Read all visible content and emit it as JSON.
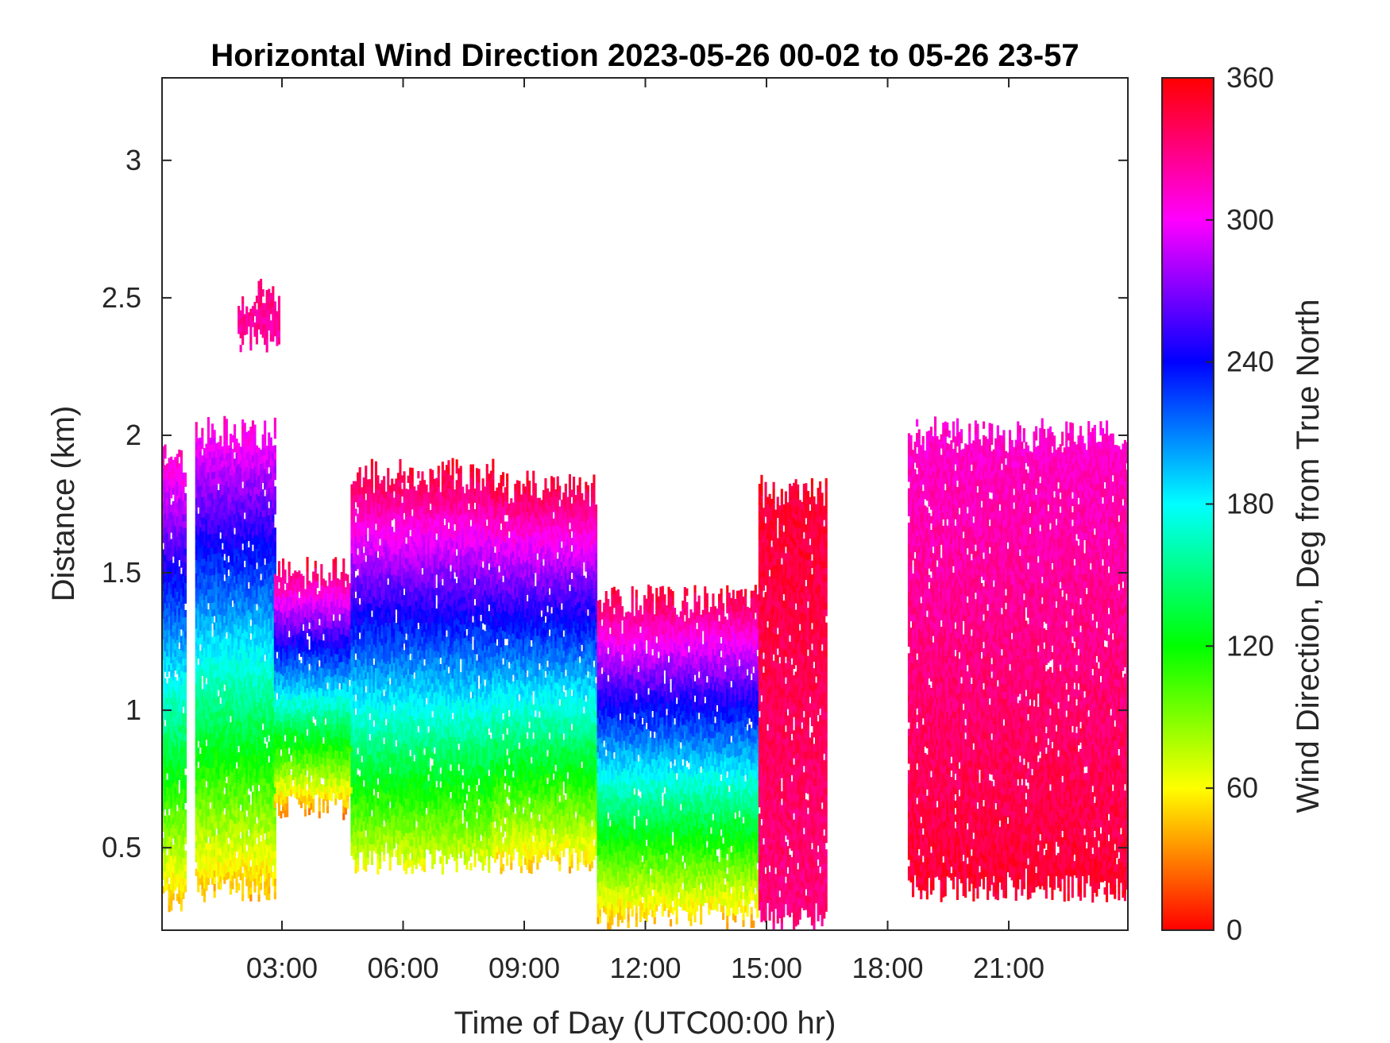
{
  "chart_data": {
    "type": "heatmap",
    "title": "Horizontal Wind Direction 2023-05-26 00-02 to 05-26 23-57",
    "xlabel": "Time of Day (UTC00:00 hr)",
    "ylabel": "Distance (km)",
    "x_unit": "hours",
    "xlim": [
      0.03,
      23.95
    ],
    "ylim": [
      0.2,
      3.3
    ],
    "x_ticks": [
      3,
      6,
      9,
      12,
      15,
      18,
      21
    ],
    "x_tick_labels": [
      "03:00",
      "06:00",
      "09:00",
      "12:00",
      "15:00",
      "18:00",
      "21:00"
    ],
    "y_ticks": [
      0.5,
      1,
      1.5,
      2,
      2.5,
      3
    ],
    "y_tick_labels": [
      "0.5",
      "1",
      "1.5",
      "2",
      "2.5",
      "3"
    ],
    "colorbar": {
      "label": "Wind Direction, Deg from True North",
      "range": [
        0,
        360
      ],
      "ticks": [
        0,
        60,
        120,
        180,
        240,
        300,
        360
      ],
      "tick_labels": [
        "0",
        "60",
        "120",
        "180",
        "240",
        "300",
        "360"
      ],
      "colors": [
        "#ff0000",
        "#ffff00",
        "#00ff00",
        "#00ffff",
        "#0000ff",
        "#ff00ff",
        "#ff0000"
      ]
    },
    "grid": false,
    "data_segments": [
      {
        "x_start": 0.03,
        "x_end": 0.6,
        "y_bottom": 0.25,
        "y_top": 1.95,
        "direction_low": 40,
        "direction_high": 320
      },
      {
        "x_start": 0.85,
        "x_end": 2.8,
        "y_bottom": 0.3,
        "y_top": 2.05,
        "direction_low": 40,
        "direction_high": 315
      },
      {
        "x_start": 1.9,
        "x_end": 2.9,
        "y_bottom": 2.3,
        "y_top": 2.55,
        "direction_low": 320,
        "direction_high": 330
      },
      {
        "x_start": 2.8,
        "x_end": 4.7,
        "y_bottom": 0.6,
        "y_top": 1.55,
        "direction_low": 30,
        "direction_high": 355
      },
      {
        "x_start": 4.7,
        "x_end": 8.2,
        "y_bottom": 0.4,
        "y_top": 1.9,
        "direction_low": 60,
        "direction_high": 355
      },
      {
        "x_start": 8.2,
        "x_end": 10.8,
        "y_bottom": 0.4,
        "y_top": 1.85,
        "direction_low": 45,
        "direction_high": 355
      },
      {
        "x_start": 10.8,
        "x_end": 14.8,
        "y_bottom": 0.2,
        "y_top": 1.45,
        "direction_low": 40,
        "direction_high": 355
      },
      {
        "x_start": 14.8,
        "x_end": 16.5,
        "y_bottom": 0.2,
        "y_top": 1.85,
        "direction_low": 330,
        "direction_high": 350
      },
      {
        "x_start": 18.5,
        "x_end": 23.95,
        "y_bottom": 0.3,
        "y_top": 2.05,
        "direction_low": 350,
        "direction_high": 310
      }
    ]
  }
}
